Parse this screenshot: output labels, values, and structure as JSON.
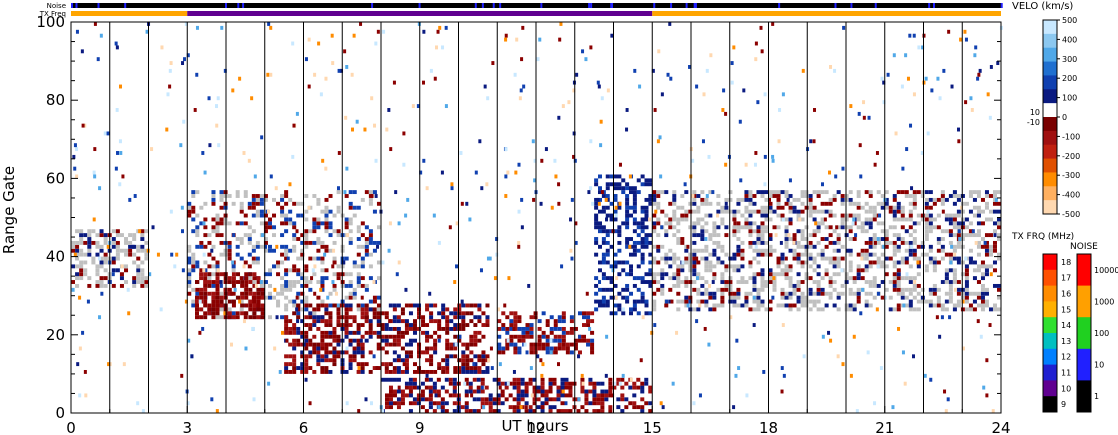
{
  "chart_data": {
    "type": "heatmap",
    "title": "",
    "xlabel": "UT hours",
    "ylabel": "Range Gate",
    "xlim": [
      0,
      24
    ],
    "ylim": [
      0,
      100
    ],
    "x_ticks": [
      "0",
      "3",
      "6",
      "9",
      "12",
      "15",
      "18",
      "21",
      "24"
    ],
    "y_ticks": [
      "0",
      "20",
      "40",
      "60",
      "80",
      "100"
    ],
    "grid": "vertical lines every UT hour",
    "top_bars": {
      "noise_label": "Noise",
      "txfreq_label": "TX Freq",
      "txfreq_segments": [
        {
          "from": 0,
          "to": 3,
          "mhz": 15
        },
        {
          "from": 3,
          "to": 15,
          "mhz": 10
        },
        {
          "from": 15,
          "to": 24,
          "mhz": 15
        }
      ]
    },
    "velocity_scale": {
      "title": "VELO (km/s)",
      "ticks": [
        "500",
        "400",
        "300",
        "200",
        "100",
        "0",
        "-100",
        "-200",
        "-300",
        "-400",
        "-500"
      ],
      "inner_ticks": [
        "10",
        "-10"
      ],
      "colors": [
        "#c8e8ff",
        "#8cc8f0",
        "#50a8e8",
        "#2070d0",
        "#1040b0",
        "#0a1a80",
        "#ffffff",
        "#7a0000",
        "#a01010",
        "#c02010",
        "#e05000",
        "#ff8c00",
        "#ffb060",
        "#ffd8b0"
      ]
    },
    "txfreq_scale": {
      "title": "TX FRQ (MHz)",
      "ticks": [
        "18",
        "17",
        "16",
        "15",
        "14",
        "13",
        "12",
        "11",
        "10",
        "9"
      ],
      "colors": [
        "#ff0000",
        "#ff5000",
        "#ff8c00",
        "#ffb000",
        "#30e030",
        "#00c0c0",
        "#0080ff",
        "#2020d0",
        "#600090",
        "#000000"
      ]
    },
    "noise_scale": {
      "title": "NOISE",
      "ticks": [
        "10000",
        "1000",
        "100",
        "10",
        "1"
      ],
      "colors": [
        "#ff0000",
        "#ffa000",
        "#20d020",
        "#2020ff",
        "#000000"
      ]
    },
    "features": [
      {
        "name": "ground scatter band",
        "x": [
          0,
          2
        ],
        "gates": [
          32,
          46
        ],
        "velocity": "ground"
      },
      {
        "name": "ground scatter band",
        "x": [
          3,
          8
        ],
        "gates": [
          24,
          56
        ],
        "velocity": "ground"
      },
      {
        "name": "negative velocity patch",
        "x": [
          3.2,
          5
        ],
        "gates": [
          24,
          35
        ],
        "velocity": "-200"
      },
      {
        "name": "negative velocity band",
        "x": [
          5.5,
          10.8
        ],
        "gates": [
          10,
          27
        ],
        "velocity": "-200"
      },
      {
        "name": "negative velocity band",
        "x": [
          11,
          13.5
        ],
        "gates": [
          15,
          25
        ],
        "velocity": "-200"
      },
      {
        "name": "positive velocity streak",
        "x": [
          13.5,
          15
        ],
        "gates": [
          25,
          60
        ],
        "velocity": "100"
      },
      {
        "name": "ground scatter band",
        "x": [
          15,
          24
        ],
        "gates": [
          26,
          56
        ],
        "velocity": "ground"
      },
      {
        "name": "near-range echoes",
        "x": [
          8,
          15
        ],
        "gates": [
          0,
          8
        ],
        "velocity": "-200"
      }
    ]
  }
}
